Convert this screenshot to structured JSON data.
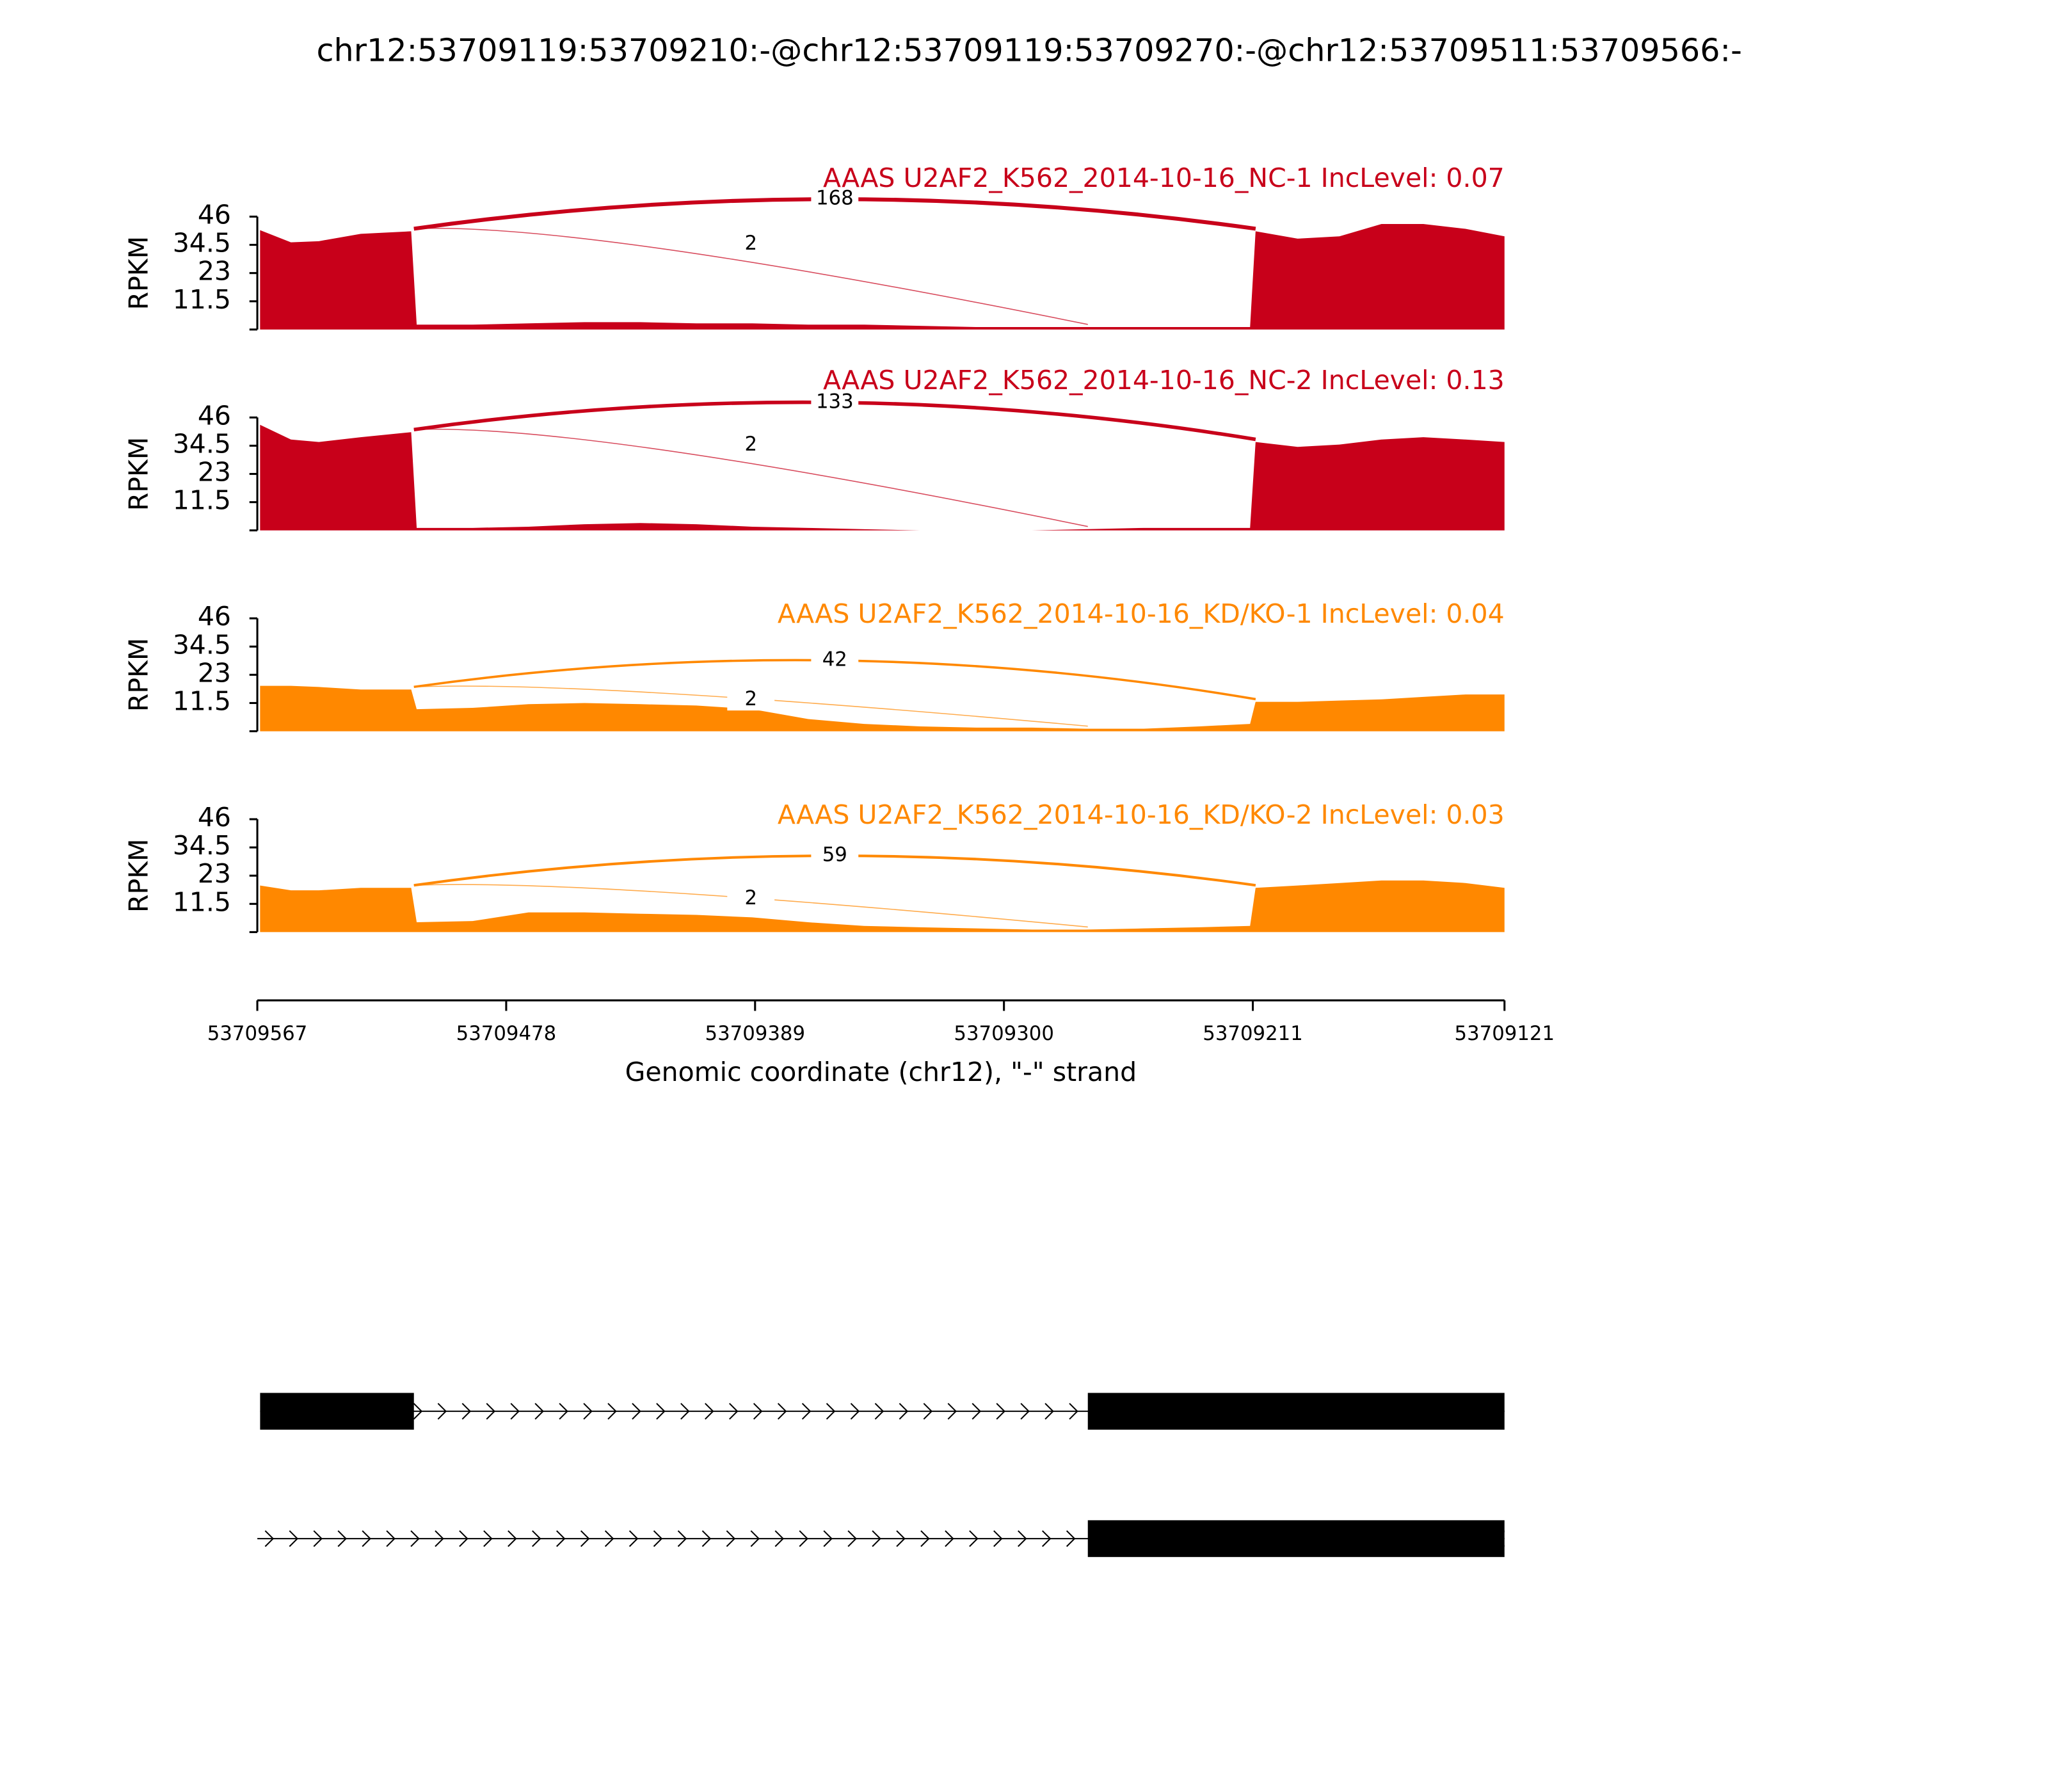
{
  "chart_data": {
    "type": "sashimi",
    "title": "chr12:53709119:53709210:-@chr12:53709119:53709270:-@chr12:53709511:53709566:-",
    "xlabel": "Genomic coordinate (chr12), \"-\" strand",
    "xlim": [
      53709567,
      53709121
    ],
    "xticks": [
      53709567,
      53709478,
      53709389,
      53709300,
      53709211,
      53709121
    ],
    "x": [
      53709566,
      53709555,
      53709545,
      53709530,
      53709512,
      53709510,
      53709490,
      53709470,
      53709450,
      53709430,
      53709410,
      53709390,
      53709370,
      53709350,
      53709330,
      53709310,
      53709290,
      53709271,
      53709250,
      53709230,
      53709212,
      53709210,
      53709195,
      53709180,
      53709165,
      53709150,
      53709135,
      53709121
    ],
    "tracks": [
      {
        "title": "AAAS U2AF2_K562_2014-10-16_NC-1 IncLevel: 0.07",
        "color": "#c8001a",
        "ylabel": "RPKM",
        "ylim": [
          0,
          46
        ],
        "yticks": [
          11.5,
          23,
          34.5,
          46
        ],
        "values": [
          40.5,
          35.5,
          36,
          39,
          40,
          2,
          2,
          2.5,
          3,
          3,
          2.5,
          2.5,
          2,
          2,
          1.5,
          1,
          1,
          1,
          1,
          1,
          1,
          40,
          37,
          38,
          43,
          43,
          41,
          38
        ],
        "junctions": [
          {
            "x": [
              53709511,
              53709210
            ],
            "count": 168
          },
          {
            "x": [
              53709511,
              53709270
            ],
            "count": 2
          }
        ]
      },
      {
        "title": "AAAS U2AF2_K562_2014-10-16_NC-2 IncLevel: 0.13",
        "color": "#c8001a",
        "ylabel": "RPKM",
        "ylim": [
          0,
          46
        ],
        "yticks": [
          11.5,
          23,
          34.5,
          46
        ],
        "values": [
          43,
          37,
          36,
          38,
          40,
          1,
          1,
          1.5,
          2.5,
          3,
          2.5,
          1.5,
          1,
          0.5,
          0,
          0,
          0,
          0.5,
          1,
          1,
          1,
          36,
          34,
          35,
          37,
          38,
          37,
          36
        ],
        "junctions": [
          {
            "x": [
              53709511,
              53709210
            ],
            "count": 133
          },
          {
            "x": [
              53709511,
              53709270
            ],
            "count": 2
          }
        ]
      },
      {
        "title": "AAAS U2AF2_K562_2014-10-16_KD/KO-1 IncLevel: 0.04",
        "color": "#ff8800",
        "ylabel": "RPKM",
        "ylim": [
          0,
          46
        ],
        "yticks": [
          11.5,
          23,
          34.5,
          46
        ],
        "values": [
          18.5,
          18.5,
          18,
          17,
          17,
          9,
          9.5,
          11,
          11.5,
          11,
          10.5,
          9,
          5,
          3,
          2,
          1.5,
          1.5,
          1,
          1,
          2,
          3,
          12,
          12,
          12.5,
          13,
          14,
          15,
          15
        ],
        "junctions": [
          {
            "x": [
              53709511,
              53709210
            ],
            "count": 42
          },
          {
            "x": [
              53709511,
              53709270
            ],
            "count": 2
          }
        ]
      },
      {
        "title": "AAAS U2AF2_K562_2014-10-16_KD/KO-2 IncLevel: 0.03",
        "color": "#ff8800",
        "ylabel": "RPKM",
        "ylim": [
          0,
          46
        ],
        "yticks": [
          11.5,
          23,
          34.5,
          46
        ],
        "values": [
          19,
          17,
          17,
          18,
          18,
          4,
          4.5,
          8,
          8,
          7.5,
          7,
          6,
          4,
          2.5,
          2,
          1.5,
          1,
          1,
          1.5,
          2,
          2.5,
          18,
          19,
          20,
          21,
          21,
          20,
          18
        ],
        "junctions": [
          {
            "x": [
              53709511,
              53709210
            ],
            "count": 59
          },
          {
            "x": [
              53709511,
              53709270
            ],
            "count": 2
          }
        ]
      }
    ],
    "transcripts": [
      {
        "x": [
          53709566,
          53709119
        ],
        "exons": [
          [
            53709566,
            53709511
          ],
          [
            53709270,
            53709119
          ]
        ]
      },
      {
        "x": [
          53709567,
          53709119
        ],
        "exons": [
          [
            53709270,
            53709119
          ]
        ]
      }
    ]
  }
}
